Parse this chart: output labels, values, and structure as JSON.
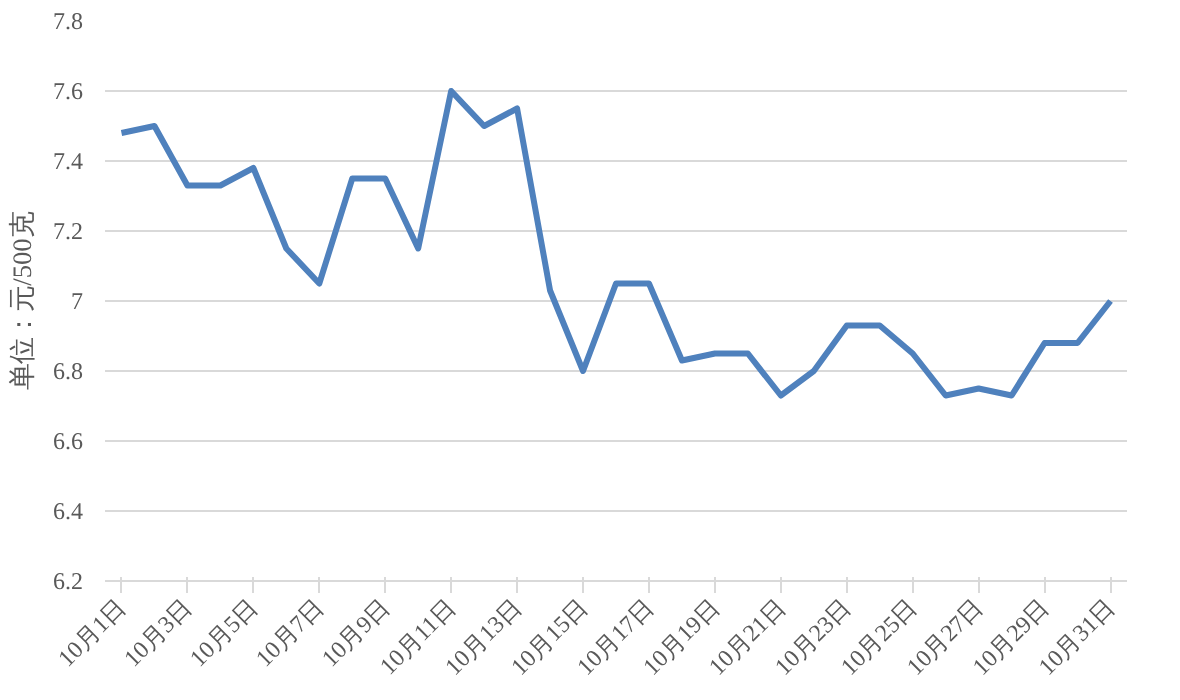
{
  "chart_data": {
    "type": "line",
    "ylabel": "单位：元/500克",
    "categories": [
      "10月1日",
      null,
      "10月3日",
      null,
      "10月5日",
      null,
      "10月7日",
      null,
      "10月9日",
      null,
      "10月11日",
      null,
      "10月13日",
      null,
      "10月15日",
      null,
      "10月17日",
      null,
      "10月19日",
      null,
      "10月21日",
      null,
      "10月23日",
      null,
      "10月25日",
      null,
      "10月27日",
      null,
      "10月29日",
      null,
      "10月31日"
    ],
    "series": [
      {
        "color": "#4f81bd",
        "values": [
          7.48,
          7.5,
          7.33,
          7.33,
          7.38,
          7.15,
          7.05,
          7.35,
          7.35,
          7.15,
          7.6,
          7.5,
          7.55,
          7.03,
          6.8,
          7.05,
          7.05,
          6.83,
          6.85,
          6.85,
          6.73,
          6.8,
          6.93,
          6.93,
          6.85,
          6.73,
          6.75,
          6.73,
          6.88,
          6.88,
          7.0
        ]
      }
    ],
    "ylim": [
      6.2,
      7.8
    ],
    "yticks": [
      6.2,
      6.4,
      6.6,
      6.8,
      7,
      7.2,
      7.4,
      7.6,
      7.8
    ],
    "grid": "y",
    "marker": "none",
    "line_style": "solid"
  }
}
